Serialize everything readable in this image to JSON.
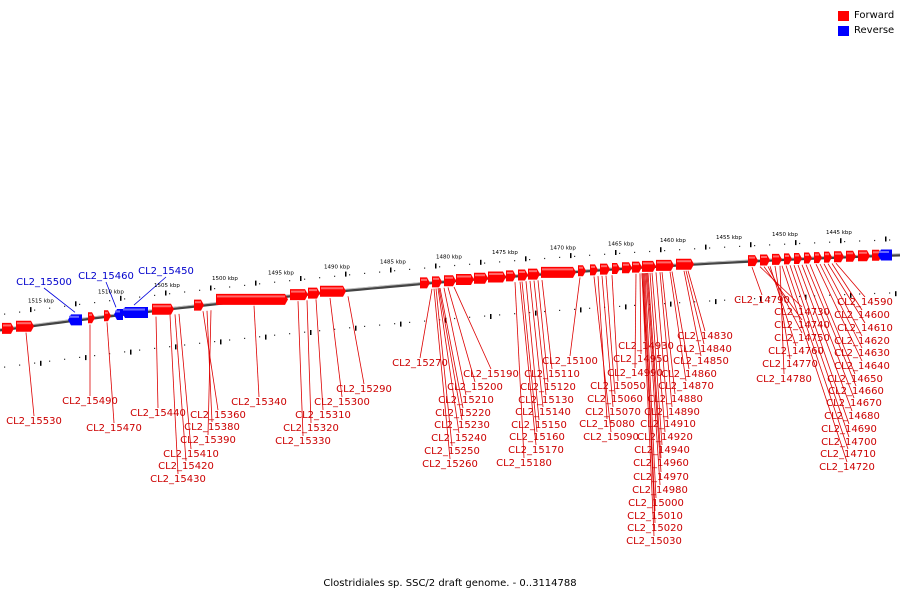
{
  "legend": [
    {
      "label": "Forward",
      "color": "#ff0000"
    },
    {
      "label": "Reverse",
      "color": "#0000ff"
    }
  ],
  "caption": "Clostridiales sp. SSC/2 draft genome. - 0..3114788",
  "colors": {
    "forward": "#ff0000",
    "reverse": "#0000ff",
    "backbone": "#555555",
    "label_forward": "#cc0000",
    "label_reverse": "#0000cc"
  },
  "ticks": [
    "1515 kbp",
    "1510 kbp",
    "1505 kbp",
    "1500 kbp",
    "1495 kbp",
    "1490 kbp",
    "1485 kbp",
    "1480 kbp",
    "1475 kbp",
    "1470 kbp",
    "1465 kbp",
    "1460 kbp",
    "1455 kbp",
    "1450 kbp",
    "1445 kbp"
  ],
  "reverse_labels": [
    "CL2_15500",
    "CL2_15460",
    "CL2_15450"
  ],
  "forward_labels": [
    "CL2_15530",
    "CL2_15490",
    "CL2_15470",
    "CL2_15440",
    "CL2_15360",
    "CL2_15380",
    "CL2_15390",
    "CL2_15410",
    "CL2_15420",
    "CL2_15430",
    "CL2_15340",
    "CL2_15310",
    "CL2_15320",
    "CL2_15330",
    "CL2_15300",
    "CL2_15290",
    "CL2_15270",
    "CL2_15190",
    "CL2_15200",
    "CL2_15210",
    "CL2_15220",
    "CL2_15230",
    "CL2_15240",
    "CL2_15250",
    "CL2_15260",
    "CL2_15100",
    "CL2_15110",
    "CL2_15120",
    "CL2_15130",
    "CL2_15140",
    "CL2_15150",
    "CL2_15160",
    "CL2_15170",
    "CL2_15180",
    "CL2_14830",
    "CL2_14840",
    "CL2_14930",
    "CL2_14950",
    "CL2_14860",
    "CL2_14850",
    "CL2_14990",
    "CL2_15050",
    "CL2_14870",
    "CL2_14880",
    "CL2_15060",
    "CL2_15070",
    "CL2_14890",
    "CL2_15080",
    "CL2_14910",
    "CL2_15090",
    "CL2_14920",
    "CL2_14940",
    "CL2_14960",
    "CL2_14970",
    "CL2_14980",
    "CL2_15000",
    "CL2_15010",
    "CL2_15020",
    "CL2_15030",
    "CL2_14790",
    "CL2_14730",
    "CL2_14740",
    "CL2_14750",
    "CL2_14760",
    "CL2_14770",
    "CL2_14780",
    "CL2_14590",
    "CL2_14600",
    "CL2_14610",
    "CL2_14620",
    "CL2_14630",
    "CL2_14640",
    "CL2_14650",
    "CL2_14660",
    "CL2_14670",
    "CL2_14680",
    "CL2_14690",
    "CL2_14700",
    "CL2_14710",
    "CL2_14720"
  ]
}
